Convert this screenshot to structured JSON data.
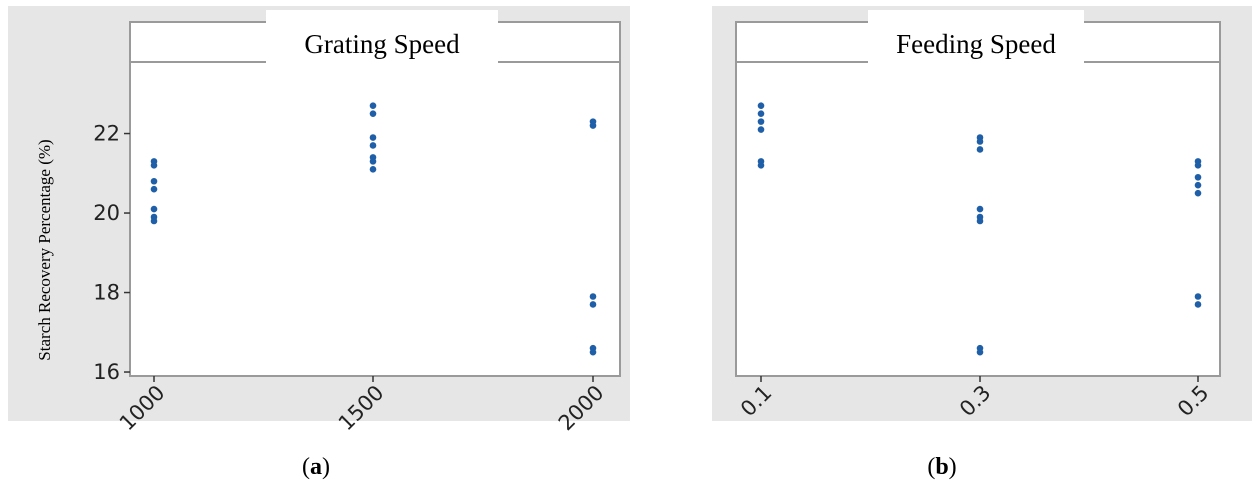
{
  "chart_data": [
    {
      "type": "scatter",
      "title": "Grating Speed",
      "xlabel": "",
      "ylabel": "Starch Recovery Percentage (%)",
      "panel_label": "a",
      "categories": [
        "1000",
        "1500",
        "2000"
      ],
      "ylim": [
        15.9,
        23.8
      ],
      "yticks": [
        16,
        18,
        20,
        22
      ],
      "points": [
        {
          "x": "1000",
          "y": 21.3
        },
        {
          "x": "1000",
          "y": 21.2
        },
        {
          "x": "1000",
          "y": 20.8
        },
        {
          "x": "1000",
          "y": 20.6
        },
        {
          "x": "1000",
          "y": 20.1
        },
        {
          "x": "1000",
          "y": 19.9
        },
        {
          "x": "1000",
          "y": 19.8
        },
        {
          "x": "1500",
          "y": 22.7
        },
        {
          "x": "1500",
          "y": 22.5
        },
        {
          "x": "1500",
          "y": 21.9
        },
        {
          "x": "1500",
          "y": 21.7
        },
        {
          "x": "1500",
          "y": 21.4
        },
        {
          "x": "1500",
          "y": 21.3
        },
        {
          "x": "1500",
          "y": 21.1
        },
        {
          "x": "2000",
          "y": 22.3
        },
        {
          "x": "2000",
          "y": 22.2
        },
        {
          "x": "2000",
          "y": 17.9
        },
        {
          "x": "2000",
          "y": 17.7
        },
        {
          "x": "2000",
          "y": 16.6
        },
        {
          "x": "2000",
          "y": 16.5
        }
      ],
      "grid": false,
      "colors": {
        "marker": "#1f5fa8",
        "background": "#e6e6e6",
        "frame": "#9a9a9a"
      }
    },
    {
      "type": "scatter",
      "title": "Feeding Speed",
      "xlabel": "",
      "ylabel": "",
      "panel_label": "b",
      "categories": [
        "0.1",
        "0.3",
        "0.5"
      ],
      "ylim": [
        15.9,
        23.8
      ],
      "yticks": [],
      "points": [
        {
          "x": "0.1",
          "y": 22.7
        },
        {
          "x": "0.1",
          "y": 22.5
        },
        {
          "x": "0.1",
          "y": 22.3
        },
        {
          "x": "0.1",
          "y": 22.1
        },
        {
          "x": "0.1",
          "y": 21.3
        },
        {
          "x": "0.1",
          "y": 21.2
        },
        {
          "x": "0.3",
          "y": 21.9
        },
        {
          "x": "0.3",
          "y": 21.8
        },
        {
          "x": "0.3",
          "y": 21.6
        },
        {
          "x": "0.3",
          "y": 20.1
        },
        {
          "x": "0.3",
          "y": 19.9
        },
        {
          "x": "0.3",
          "y": 19.8
        },
        {
          "x": "0.3",
          "y": 16.6
        },
        {
          "x": "0.3",
          "y": 16.5
        },
        {
          "x": "0.5",
          "y": 21.3
        },
        {
          "x": "0.5",
          "y": 21.2
        },
        {
          "x": "0.5",
          "y": 20.9
        },
        {
          "x": "0.5",
          "y": 20.7
        },
        {
          "x": "0.5",
          "y": 20.5
        },
        {
          "x": "0.5",
          "y": 17.9
        },
        {
          "x": "0.5",
          "y": 17.7
        }
      ],
      "grid": false,
      "colors": {
        "marker": "#1f5fa8",
        "background": "#e6e6e6",
        "frame": "#9a9a9a"
      }
    }
  ]
}
